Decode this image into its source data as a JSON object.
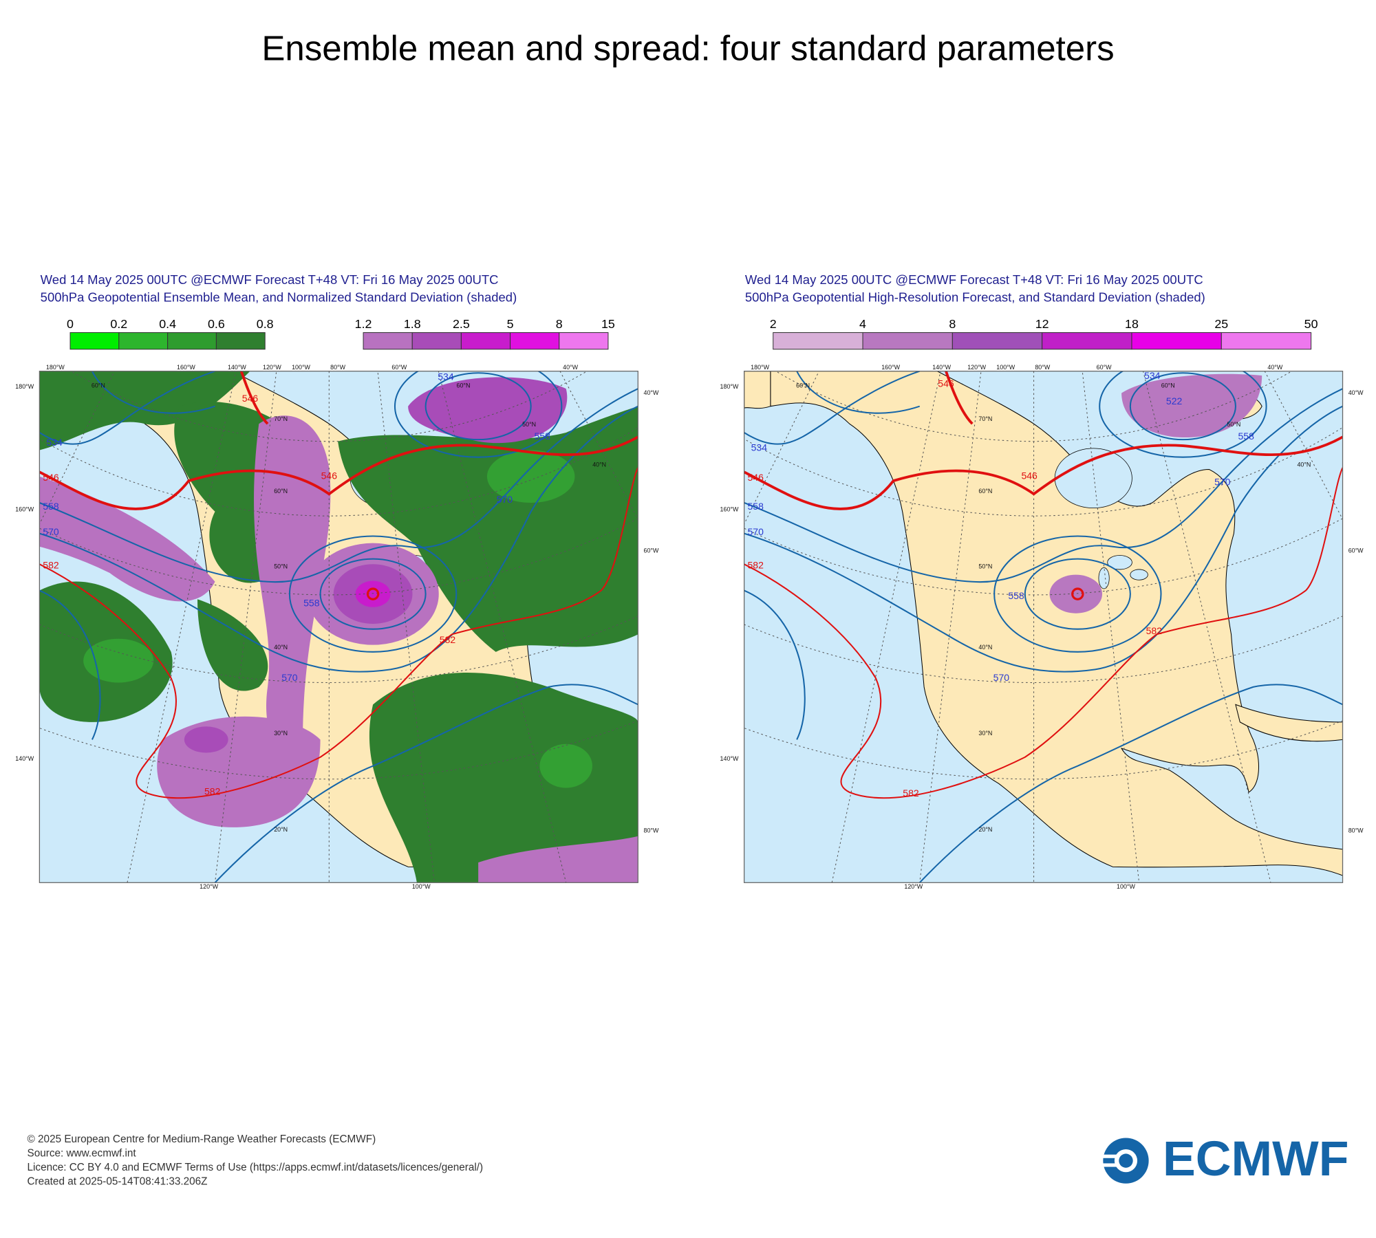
{
  "title": "Ensemble mean and spread: four standard parameters",
  "panels": [
    {
      "header": [
        "Wed 14 May 2025 00UTC @ECMWF Forecast T+48 VT: Fri 16 May 2025 00UTC",
        "500hPa Geopotential Ensemble Mean, and Normalized Standard Deviation (shaded)"
      ],
      "colorbars": [
        {
          "labels": [
            "0",
            "0.2",
            "0.4",
            "0.6",
            "0.8"
          ],
          "colors": [
            "#00ee00",
            "#2db52d",
            "#2e9c2e",
            "#2f7f2f"
          ]
        },
        {
          "labels": [
            "1.2",
            "1.8",
            "2.5",
            "5",
            "8",
            "15"
          ],
          "colors": [
            "#b872c0",
            "#a84cb8",
            "#c81ccc",
            "#e010e0",
            "#ee77ee"
          ]
        }
      ],
      "graticule_labels": [
        "180°W",
        "160°W",
        "140°W",
        "120°W",
        "100°W",
        "80°W",
        "60°W",
        "40°W",
        "180°W",
        "160°W",
        "140°W",
        "40°W",
        "60°W",
        "80°W",
        "120°W",
        "100°W",
        "60°N",
        "70°N",
        "60°N",
        "50°N",
        "40°N",
        "30°N",
        "20°N",
        "60°N",
        "50°N",
        "40°N"
      ],
      "contour_labels": [
        "534",
        "546",
        "558",
        "570",
        "582",
        "546",
        "546",
        "558",
        "570",
        "582",
        "582",
        "570",
        "534",
        "558"
      ]
    },
    {
      "header": [
        "Wed 14 May 2025 00UTC @ECMWF Forecast T+48 VT: Fri 16 May 2025 00UTC",
        "500hPa Geopotential High-Resolution Forecast, and Standard Deviation (shaded)"
      ],
      "colorbars": [
        {
          "labels": [
            "2",
            "4",
            "8",
            "12",
            "18",
            "25",
            "50"
          ],
          "colors": [
            "#d8b0d8",
            "#b878c0",
            "#a050b8",
            "#c020c8",
            "#e800e8",
            "#ee77ee"
          ]
        }
      ],
      "graticule_labels": [
        "180°W",
        "160°W",
        "140°W",
        "120°W",
        "100°W",
        "80°W",
        "60°W",
        "40°W",
        "180°W",
        "160°W",
        "140°W",
        "40°W",
        "60°W",
        "80°W",
        "120°W",
        "100°W",
        "60°N",
        "70°N",
        "60°N",
        "50°N",
        "40°N",
        "30°N",
        "20°N",
        "60°N",
        "50°N",
        "40°N"
      ],
      "contour_labels": [
        "534",
        "546",
        "558",
        "570",
        "582",
        "546",
        "546",
        "558",
        "570",
        "582",
        "582",
        "570",
        "534",
        "522",
        "558"
      ]
    }
  ],
  "footer": [
    "© 2025 European Centre for Medium-Range Weather Forecasts (ECMWF)",
    "Source: www.ecmwf.int",
    "Licence: CC BY 4.0 and ECMWF Terms of Use (https://apps.ecmwf.int/datasets/licences/general/)",
    "Created at 2025-05-14T08:41:33.206Z"
  ],
  "logo": "ECMWF"
}
